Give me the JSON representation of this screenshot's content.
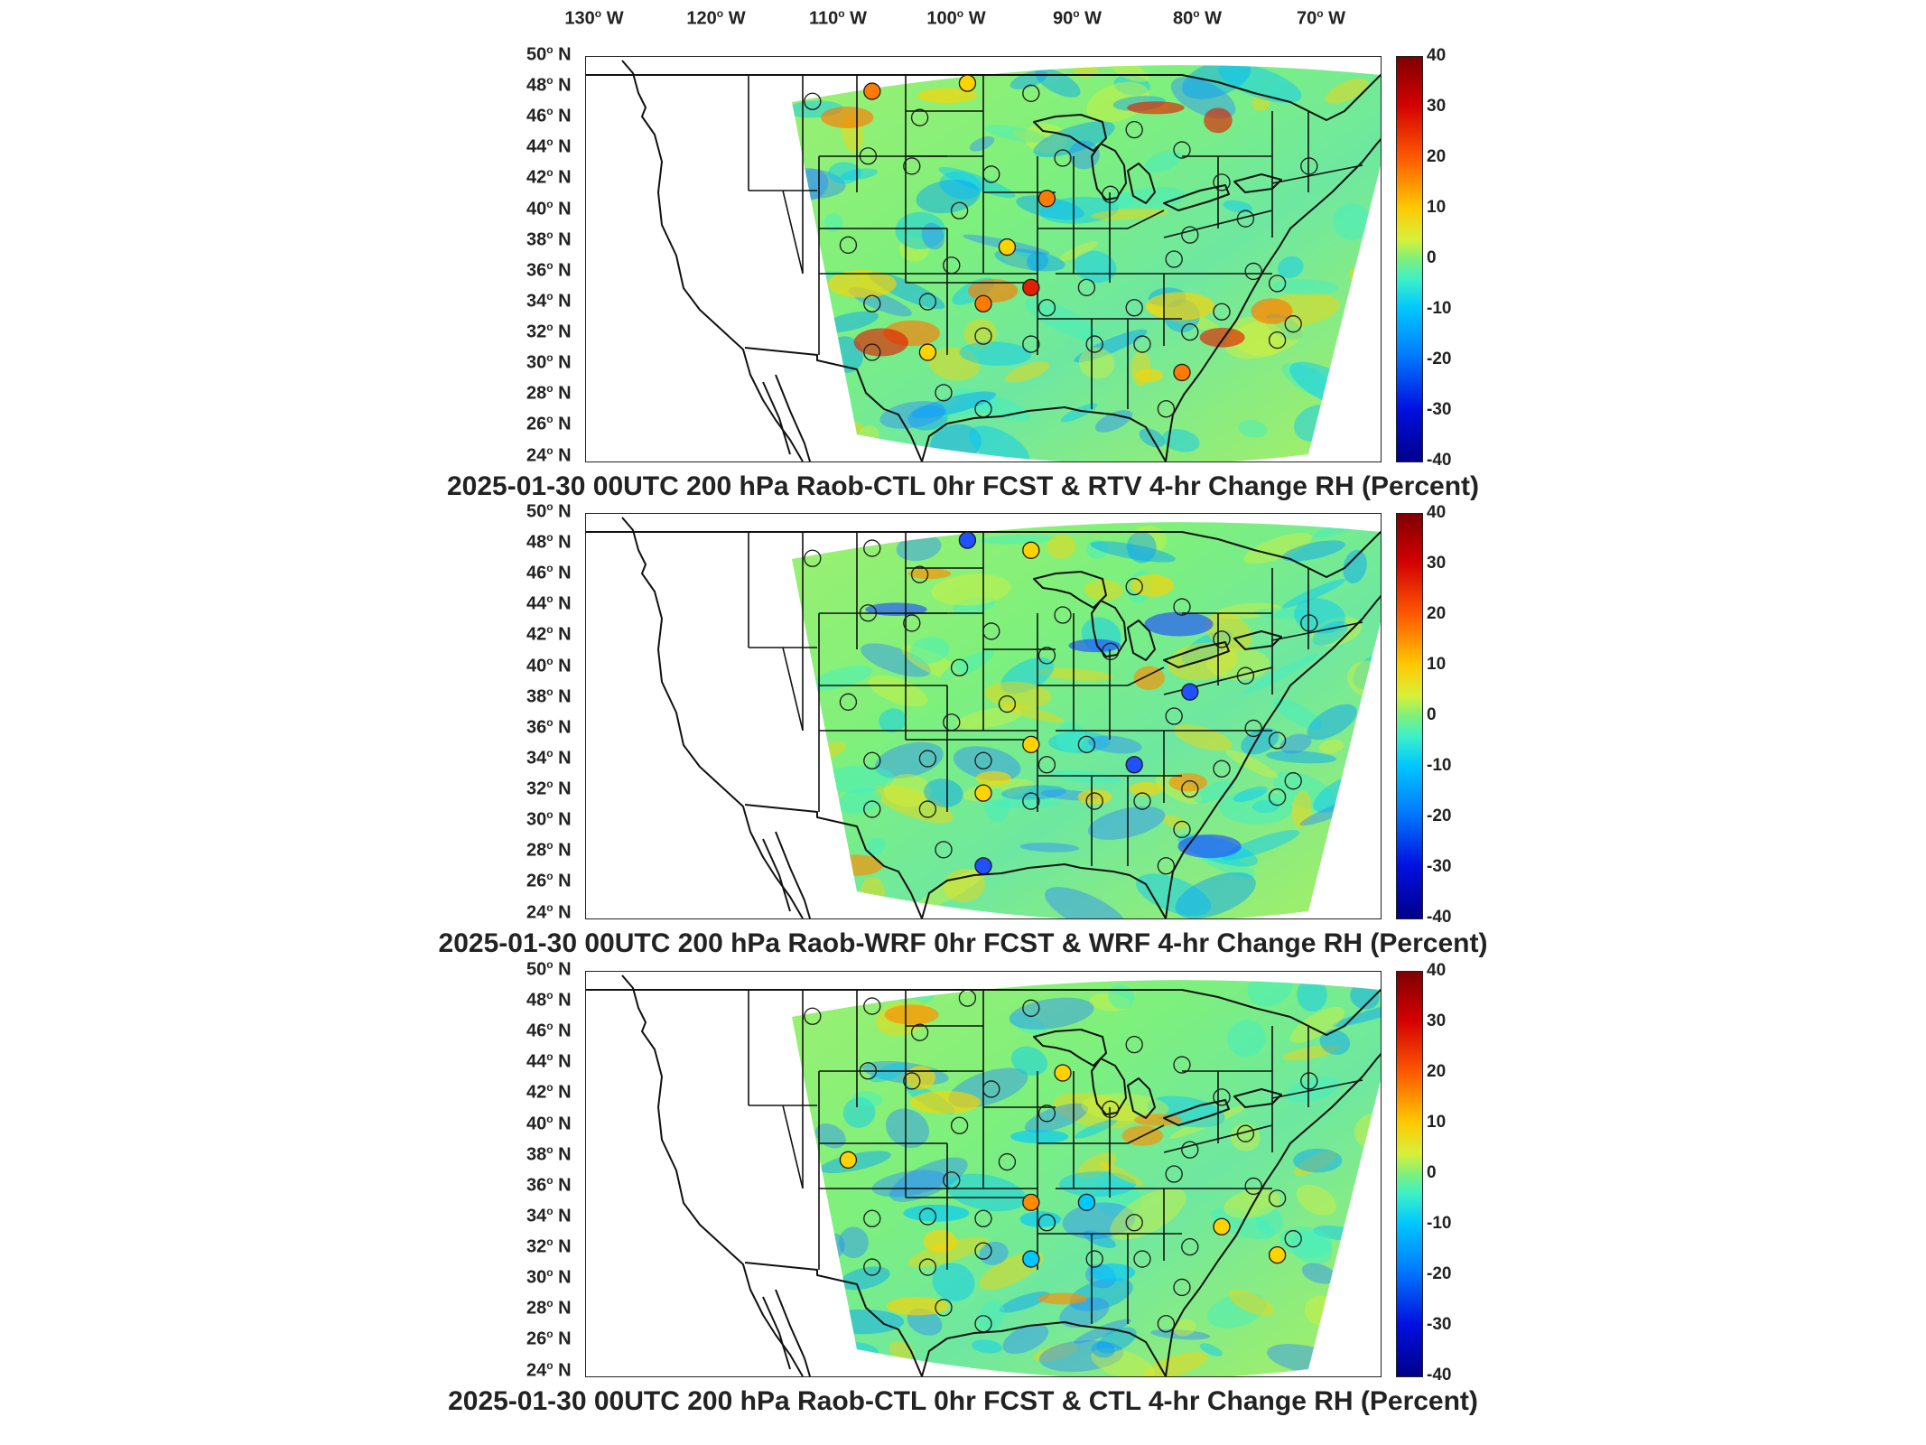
{
  "longitude_labels": [
    {
      "deg": "130",
      "dir": "W"
    },
    {
      "deg": "120",
      "dir": "W"
    },
    {
      "deg": "110",
      "dir": "W"
    },
    {
      "deg": "100",
      "dir": "W"
    },
    {
      "deg": "90",
      "dir": "W"
    },
    {
      "deg": "80",
      "dir": "W"
    },
    {
      "deg": "70",
      "dir": "W"
    }
  ],
  "degree_symbol": "o",
  "latitude_labels": [
    {
      "deg": "50",
      "dir": "N"
    },
    {
      "deg": "48",
      "dir": "N"
    },
    {
      "deg": "46",
      "dir": "N"
    },
    {
      "deg": "44",
      "dir": "N"
    },
    {
      "deg": "42",
      "dir": "N"
    },
    {
      "deg": "40",
      "dir": "N"
    },
    {
      "deg": "38",
      "dir": "N"
    },
    {
      "deg": "36",
      "dir": "N"
    },
    {
      "deg": "34",
      "dir": "N"
    },
    {
      "deg": "32",
      "dir": "N"
    },
    {
      "deg": "30",
      "dir": "N"
    },
    {
      "deg": "28",
      "dir": "N"
    },
    {
      "deg": "26",
      "dir": "N"
    },
    {
      "deg": "24",
      "dir": "N"
    }
  ],
  "colorbar": {
    "ticks": [
      "40",
      "30",
      "20",
      "10",
      "0",
      "-10",
      "-20",
      "-30",
      "-40"
    ],
    "range": [
      -40,
      40
    ],
    "colors": {
      "max": "#7f0000",
      "high": "#ff5a00",
      "zero": "#7df07d",
      "low": "#0080ff",
      "min": "#00008a"
    }
  },
  "panels": [
    {
      "title": "2025-01-30 00UTC 200 hPa Raob-CTL 0hr FCST & RTV 4-hr Change RH (Percent)",
      "field_color": "#7df07d",
      "highlight_colors": [
        "#ff7a00",
        "#ffd200",
        "#e02000"
      ],
      "stations": [
        {
          "name_icon": "raob-station-icon",
          "value": 0
        }
      ]
    },
    {
      "title": "2025-01-30 00UTC 200 hPa Raob-WRF 0hr FCST & WRF 4-hr Change RH (Percent)",
      "field_color": "#7df07d",
      "highlight_colors": [
        "#2050ff",
        "#ffd200",
        "#ff8c00"
      ],
      "stations": [
        {
          "name_icon": "raob-station-icon",
          "value": 0
        }
      ]
    },
    {
      "title": "2025-01-30 00UTC 200 hPa Raob-CTL 0hr FCST & CTL 4-hr Change RH (Percent)",
      "field_color": "#7df07d",
      "highlight_colors": [
        "#ffd200",
        "#00c8ff",
        "#ff8c00"
      ],
      "stations": [
        {
          "name_icon": "raob-station-icon",
          "value": 0
        }
      ]
    }
  ]
}
